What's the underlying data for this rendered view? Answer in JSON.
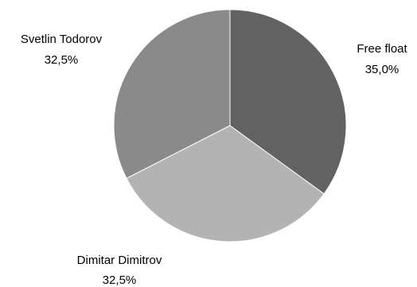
{
  "chart_data": {
    "type": "pie",
    "title": "",
    "slices": [
      {
        "name": "Free float",
        "value": 35.0,
        "label": "35,0%",
        "color": "#626262"
      },
      {
        "name": "Dimitar Dimitrov",
        "value": 32.5,
        "label": "32,5%",
        "color": "#b3b3b3"
      },
      {
        "name": "Svetlin Todorov",
        "value": 32.5,
        "label": "32,5%",
        "color": "#8a8a8a"
      }
    ],
    "start_angle_deg": 0,
    "direction": "clockwise",
    "slice_border_color": "#ffffff"
  }
}
